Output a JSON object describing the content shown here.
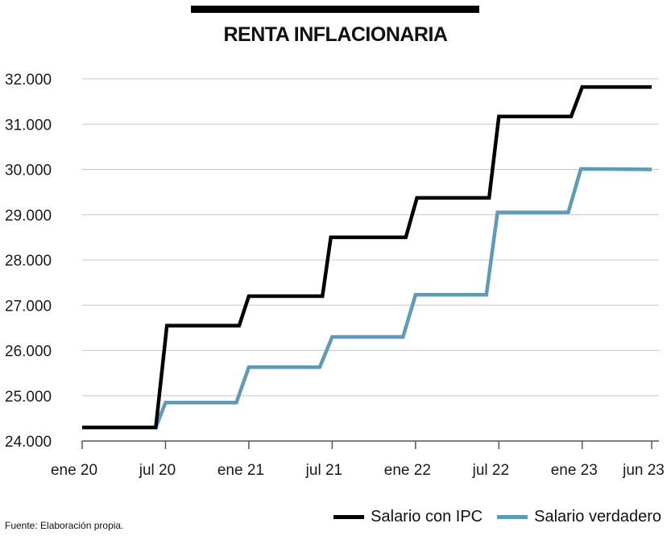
{
  "chart_data": {
    "type": "line",
    "title": "RENTA INFLACIONARIA",
    "xlabel": "",
    "ylabel": "",
    "ylim": [
      24000,
      32000
    ],
    "yticks": [
      {
        "value": 24000,
        "label": "24.000"
      },
      {
        "value": 25000,
        "label": "25.000"
      },
      {
        "value": 26000,
        "label": "26.000"
      },
      {
        "value": 27000,
        "label": "27.000"
      },
      {
        "value": 28000,
        "label": "28.000"
      },
      {
        "value": 29000,
        "label": "29.000"
      },
      {
        "value": 30000,
        "label": "30.000"
      },
      {
        "value": 31000,
        "label": "31.000"
      },
      {
        "value": 32000,
        "label": "32.000"
      }
    ],
    "xlim": [
      0,
      41
    ],
    "xticks": [
      {
        "value": 0,
        "label": "ene 20"
      },
      {
        "value": 6,
        "label": "jul 20"
      },
      {
        "value": 12,
        "label": "ene 21"
      },
      {
        "value": 18,
        "label": "jul 21"
      },
      {
        "value": 24,
        "label": "ene 22"
      },
      {
        "value": 30,
        "label": "jul 22"
      },
      {
        "value": 36,
        "label": "ene 23"
      },
      {
        "value": 41,
        "label": "jun 23"
      }
    ],
    "grid": "horizontal",
    "legend_position": "bottom-right",
    "series": [
      {
        "name": "Salario con IPC",
        "color": "#000000",
        "points": [
          [
            0,
            24300
          ],
          [
            5.3,
            24300
          ],
          [
            6.1,
            26550
          ],
          [
            11.3,
            26550
          ],
          [
            12.0,
            27200
          ],
          [
            17.3,
            27200
          ],
          [
            17.9,
            28500
          ],
          [
            23.3,
            28500
          ],
          [
            24.1,
            29370
          ],
          [
            29.3,
            29370
          ],
          [
            30.0,
            31170
          ],
          [
            35.2,
            31170
          ],
          [
            36.0,
            31820
          ],
          [
            41,
            31820
          ]
        ]
      },
      {
        "name": "Salario verdadero",
        "color": "#5e9bb8",
        "points": [
          [
            0,
            24300
          ],
          [
            5.3,
            24300
          ],
          [
            6.0,
            24850
          ],
          [
            11.1,
            24850
          ],
          [
            12.0,
            25630
          ],
          [
            17.1,
            25630
          ],
          [
            18.0,
            26300
          ],
          [
            23.1,
            26300
          ],
          [
            24.0,
            27230
          ],
          [
            29.1,
            27230
          ],
          [
            29.9,
            29050
          ],
          [
            35.0,
            29050
          ],
          [
            35.9,
            30010
          ],
          [
            41,
            30000
          ]
        ]
      }
    ]
  },
  "source": "Fuente: Elaboración propia."
}
